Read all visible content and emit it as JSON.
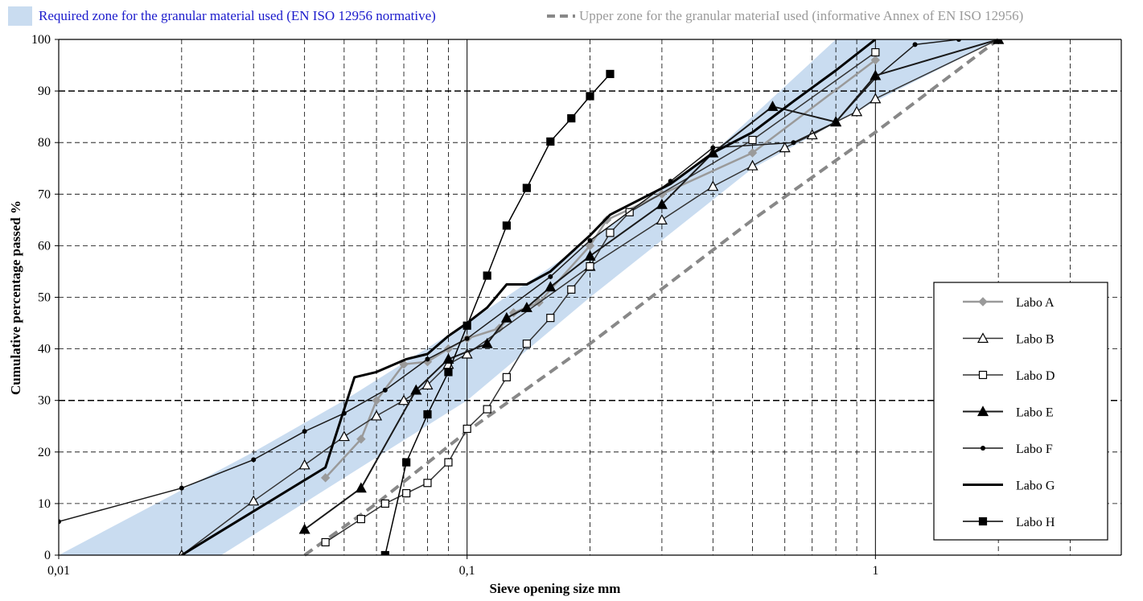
{
  "chart_data": {
    "type": "line",
    "xscale": "log",
    "xlim": [
      0.01,
      4
    ],
    "ylim": [
      0,
      100
    ],
    "xticks": [
      {
        "value": 0.01,
        "label": "0,01"
      },
      {
        "value": 0.1,
        "label": "0,1"
      },
      {
        "value": 1,
        "label": "1"
      }
    ],
    "yticks": [
      0,
      10,
      20,
      30,
      40,
      50,
      60,
      70,
      80,
      90,
      100
    ],
    "xlabel": "Sieve opening size mm",
    "ylabel": "Cumulative percentage passed %",
    "grid": true,
    "top_legend": {
      "zone_label": "Required zone for the granular material used (EN ISO 12956 normative)",
      "upper_label": "Upper zone for the granular materiaI used (informative Annex of EN ISO 12956)"
    },
    "zone": {
      "color": "#c9dcf0",
      "polygon": [
        [
          0.01,
          0
        ],
        [
          0.025,
          0
        ],
        [
          0.05,
          15
        ],
        [
          0.1,
          30
        ],
        [
          0.2,
          50
        ],
        [
          0.5,
          75
        ],
        [
          1,
          88
        ],
        [
          2,
          100
        ],
        [
          0.8,
          100
        ],
        [
          0.4,
          78
        ],
        [
          0.2,
          61
        ],
        [
          0.1,
          45
        ],
        [
          0.05,
          30
        ],
        [
          0.03,
          20
        ],
        [
          0.01,
          0
        ]
      ]
    },
    "upper_line": {
      "color": "#888888",
      "points": [
        [
          0.04,
          0
        ],
        [
          0.06,
          10
        ],
        [
          0.1,
          24
        ],
        [
          0.2,
          41
        ],
        [
          0.5,
          65
        ],
        [
          1,
          82
        ],
        [
          2,
          100
        ]
      ]
    },
    "legend_position": "right",
    "series": [
      {
        "name": "Labo A",
        "marker": "diamond",
        "color": "#9a9a9a",
        "width": 2.5,
        "points": [
          [
            0.045,
            15
          ],
          [
            0.055,
            22.5
          ],
          [
            0.06,
            30
          ],
          [
            0.07,
            37
          ],
          [
            0.08,
            37.5
          ],
          [
            0.09,
            40
          ],
          [
            0.1,
            42
          ],
          [
            0.12,
            44
          ],
          [
            0.13,
            47
          ],
          [
            0.15,
            49
          ],
          [
            0.2,
            60
          ],
          [
            0.22,
            65
          ],
          [
            0.3,
            70
          ],
          [
            0.5,
            78
          ],
          [
            1,
            96
          ]
        ]
      },
      {
        "name": "Labo B",
        "marker": "triangle-open",
        "color": "#333333",
        "width": 1.5,
        "points": [
          [
            0.02,
            0
          ],
          [
            0.03,
            10.5
          ],
          [
            0.04,
            17.5
          ],
          [
            0.05,
            23
          ],
          [
            0.06,
            27
          ],
          [
            0.07,
            30
          ],
          [
            0.08,
            33
          ],
          [
            0.09,
            37
          ],
          [
            0.1,
            39
          ],
          [
            0.2,
            56
          ],
          [
            0.3,
            65
          ],
          [
            0.4,
            71.5
          ],
          [
            0.5,
            75.5
          ],
          [
            0.6,
            79
          ],
          [
            0.7,
            81.5
          ],
          [
            0.8,
            84
          ],
          [
            0.9,
            86
          ],
          [
            1,
            88.5
          ],
          [
            2,
            100
          ]
        ]
      },
      {
        "name": "Labo D",
        "marker": "square-open",
        "color": "#333333",
        "width": 1.5,
        "points": [
          [
            0.045,
            2.5
          ],
          [
            0.055,
            7
          ],
          [
            0.063,
            10
          ],
          [
            0.071,
            12
          ],
          [
            0.08,
            14
          ],
          [
            0.09,
            18
          ],
          [
            0.1,
            24.5
          ],
          [
            0.112,
            28.3
          ],
          [
            0.125,
            34.5
          ],
          [
            0.14,
            41
          ],
          [
            0.16,
            46
          ],
          [
            0.18,
            51.5
          ],
          [
            0.2,
            56
          ],
          [
            0.224,
            62.5
          ],
          [
            0.25,
            66.5
          ],
          [
            0.5,
            80.5
          ],
          [
            1,
            97.5
          ]
        ]
      },
      {
        "name": "Labo E",
        "marker": "triangle-filled",
        "color": "#1a1a1a",
        "width": 2,
        "points": [
          [
            0.04,
            5
          ],
          [
            0.055,
            13
          ],
          [
            0.075,
            32
          ],
          [
            0.09,
            38
          ],
          [
            0.112,
            41
          ],
          [
            0.125,
            46
          ],
          [
            0.14,
            48
          ],
          [
            0.16,
            52
          ],
          [
            0.2,
            58
          ],
          [
            0.3,
            68
          ],
          [
            0.4,
            78
          ],
          [
            0.56,
            87
          ],
          [
            0.8,
            84
          ],
          [
            1,
            93
          ],
          [
            2,
            100
          ]
        ]
      },
      {
        "name": "Labo F",
        "marker": "dot",
        "color": "#1a1a1a",
        "width": 1.5,
        "points": [
          [
            0.01,
            6.5
          ],
          [
            0.02,
            13
          ],
          [
            0.03,
            18.5
          ],
          [
            0.04,
            24
          ],
          [
            0.05,
            27.5
          ],
          [
            0.063,
            32
          ],
          [
            0.08,
            38
          ],
          [
            0.1,
            42
          ],
          [
            0.16,
            54
          ],
          [
            0.2,
            61
          ],
          [
            0.315,
            72.5
          ],
          [
            0.4,
            79
          ],
          [
            0.63,
            80
          ],
          [
            0.8,
            84
          ],
          [
            1,
            92.5
          ],
          [
            1.25,
            99
          ],
          [
            1.6,
            100
          ],
          [
            2,
            100
          ]
        ]
      },
      {
        "name": "Labo G",
        "marker": "none",
        "color": "#000000",
        "width": 3,
        "points": [
          [
            0.02,
            0
          ],
          [
            0.045,
            17
          ],
          [
            0.053,
            34.5
          ],
          [
            0.06,
            35.5
          ],
          [
            0.071,
            38
          ],
          [
            0.08,
            39
          ],
          [
            0.09,
            42.5
          ],
          [
            0.1,
            45
          ],
          [
            0.112,
            48
          ],
          [
            0.125,
            52.5
          ],
          [
            0.14,
            52.5
          ],
          [
            0.16,
            55
          ],
          [
            0.2,
            62
          ],
          [
            0.224,
            66
          ],
          [
            0.315,
            72
          ],
          [
            0.4,
            78
          ],
          [
            0.5,
            82
          ],
          [
            0.63,
            88
          ],
          [
            0.8,
            94
          ],
          [
            1,
            100
          ]
        ]
      },
      {
        "name": "Labo H",
        "marker": "square-filled",
        "color": "#000000",
        "width": 1.5,
        "points": [
          [
            0.063,
            0
          ],
          [
            0.071,
            18
          ],
          [
            0.08,
            27.3
          ],
          [
            0.09,
            35.5
          ],
          [
            0.1,
            44.5
          ],
          [
            0.112,
            54.2
          ],
          [
            0.125,
            63.9
          ],
          [
            0.14,
            71.2
          ],
          [
            0.16,
            80.2
          ],
          [
            0.18,
            84.7
          ],
          [
            0.2,
            89
          ],
          [
            0.224,
            93.3
          ]
        ]
      }
    ]
  }
}
